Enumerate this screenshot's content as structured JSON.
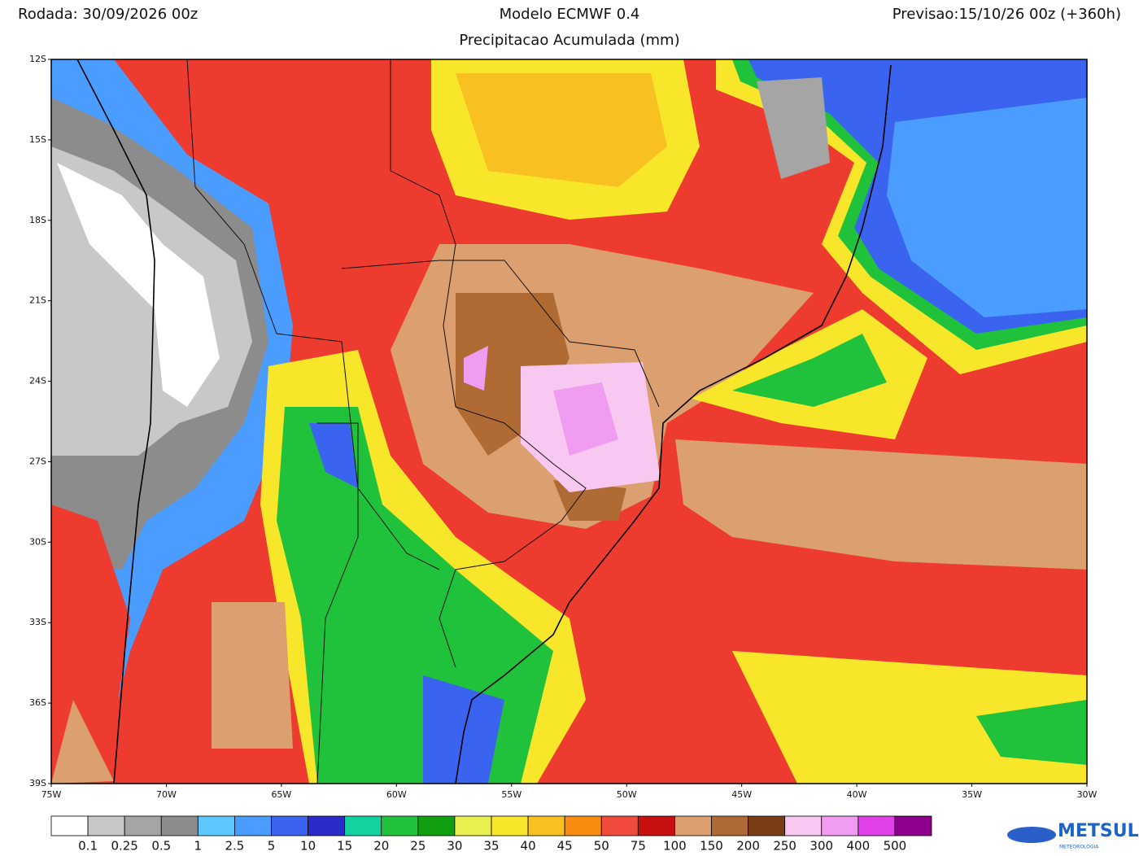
{
  "header": {
    "left": "Rodada: 30/09/2026 00z",
    "title": "Modelo ECMWF 0.4",
    "subtitle": "Precipitacao Acumulada (mm)",
    "right": "Previsao:15/10/26 00z (+360h)"
  },
  "map": {
    "lat_labels": [
      "12S",
      "15S",
      "18S",
      "21S",
      "24S",
      "27S",
      "30S",
      "33S",
      "36S",
      "39S"
    ],
    "lon_labels": [
      "75W",
      "70W",
      "65W",
      "60W",
      "55W",
      "50W",
      "45W",
      "40W",
      "35W",
      "30W"
    ]
  },
  "colorbar": {
    "labels": [
      "0.1",
      "0.25",
      "0.5",
      "1",
      "2.5",
      "5",
      "10",
      "15",
      "20",
      "25",
      "30",
      "35",
      "40",
      "45",
      "50",
      "75",
      "100",
      "150",
      "200",
      "250",
      "300",
      "400",
      "500"
    ],
    "colors": [
      "#ffffff",
      "#c8c8c8",
      "#a5a5a5",
      "#8c8c8c",
      "#5cc8ff",
      "#4a9cff",
      "#3a64f0",
      "#2a2ac8",
      "#12d2a0",
      "#20c23c",
      "#10a010",
      "#e8f050",
      "#f8e62a",
      "#f8c020",
      "#f88c10",
      "#f04a3c",
      "#c81010",
      "#dca070",
      "#b06a34",
      "#7a3c14",
      "#f8c8f0",
      "#f09cf0",
      "#e040e8",
      "#8c008c"
    ]
  },
  "logo": {
    "name": "METSUL",
    "tagline": "METEOROLOGIA"
  }
}
